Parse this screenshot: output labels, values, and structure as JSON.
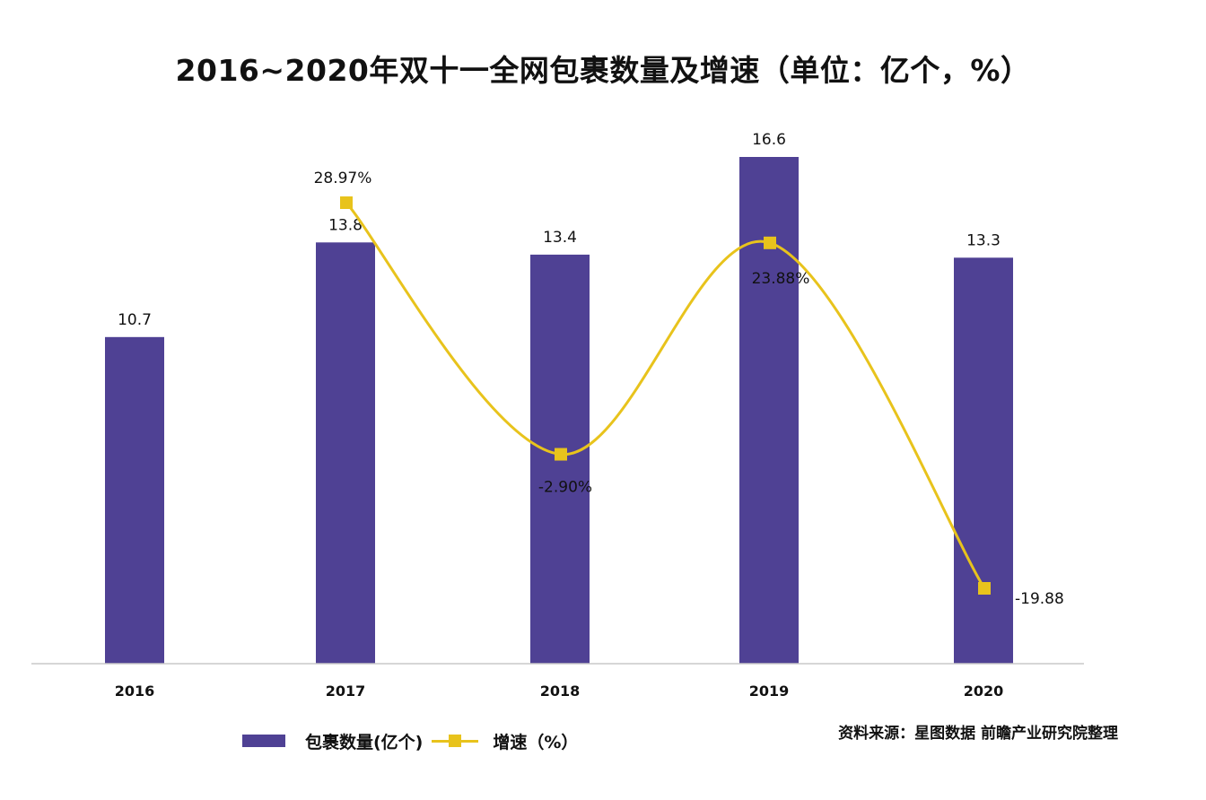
{
  "chart_data": {
    "type": "bar",
    "title": "2016~2020年双十一全网包裹数量及增速（单位：亿个，%）",
    "categories": [
      "2016",
      "2017",
      "2018",
      "2019",
      "2020"
    ],
    "series": [
      {
        "name": "包裹数量(亿个)",
        "type": "bar",
        "values": [
          10.7,
          13.8,
          13.4,
          16.6,
          13.3
        ],
        "labels": [
          "10.7",
          "13.8",
          "13.4",
          "16.6",
          "13.3"
        ]
      },
      {
        "name": "增速（%）",
        "type": "line",
        "smooth": true,
        "values": [
          null,
          28.97,
          -2.9,
          23.88,
          -19.88
        ],
        "labels": [
          "",
          "28.97%",
          "-2.90%",
          "23.88%",
          "-19.88"
        ]
      }
    ],
    "bar_axis": {
      "ylim": [
        0,
        18
      ]
    },
    "line_axis": {
      "ylim": [
        -25,
        35
      ]
    },
    "grid": false,
    "legend_position": "bottom-left"
  },
  "legend": {
    "bar_label": "包裹数量(亿个)",
    "line_label": "增速（%）"
  },
  "source": "资料来源：星图数据 前瞻产业研究院整理",
  "colors": {
    "bar": "#4f4194",
    "line": "#e8c31c",
    "axis": "#c8c8c8",
    "text": "#111111"
  }
}
